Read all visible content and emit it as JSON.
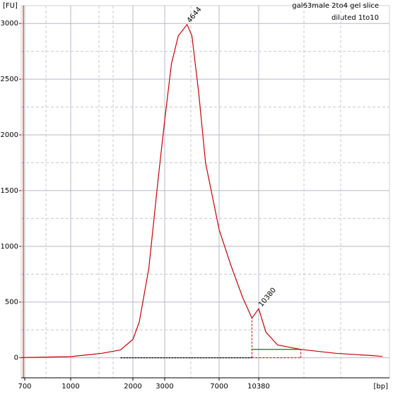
{
  "chart_data": {
    "type": "line",
    "title": "gal63male 2to4 gel slice",
    "subtitle": "diluted 1to10",
    "ylabel": "[FU]",
    "xlabel": "[bp]",
    "xlim": [
      680,
      21000
    ],
    "xticks": [
      700,
      1000,
      2000,
      3000,
      7000,
      10380
    ],
    "ylim": [
      -180,
      3160
    ],
    "yticks": [
      0,
      500,
      1000,
      1500,
      2000,
      2500,
      3000
    ],
    "grid": true,
    "series": [
      {
        "color": "#cc0000",
        "x": [
          680,
          1000,
          1500,
          1800,
          2000,
          2200,
          2500,
          2800,
          3000,
          3500,
          4000,
          4644,
          5000,
          5500,
          6000,
          7000,
          8000,
          9000,
          9800,
          10380,
          11000,
          12000,
          14000,
          17000,
          20000,
          21000
        ],
        "values": [
          2,
          10,
          40,
          70,
          165,
          320,
          800,
          1620,
          2130,
          2640,
          2890,
          2990,
          2890,
          2380,
          1750,
          1150,
          830,
          545,
          355,
          440,
          230,
          115,
          75,
          40,
          20,
          12
        ]
      }
    ],
    "annotations": [
      {
        "text": "4644",
        "x": 4644,
        "y": 2990,
        "color": "#000000"
      },
      {
        "text": "10380",
        "x": 10380,
        "y": 440,
        "color": "#9933cc"
      }
    ],
    "markers": [
      {
        "x1": 1800,
        "x2": 9800,
        "y": 0,
        "color": "#000000"
      },
      {
        "x1": 9800,
        "x2": 14000,
        "y": 75,
        "color": "#008000"
      }
    ]
  }
}
